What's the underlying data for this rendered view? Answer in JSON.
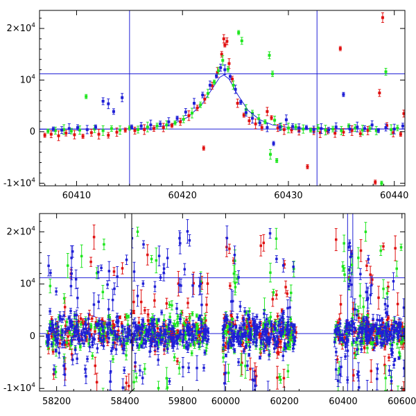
{
  "chart_data": [
    {
      "type": "scatter",
      "panel": "top",
      "title": "",
      "xlabel": "",
      "ylabel": "",
      "xlim": [
        60406.5,
        60441
      ],
      "ylim": [
        -10500,
        23500
      ],
      "x_ticks": [
        {
          "value": 60410,
          "label": "60410"
        },
        {
          "value": 60420,
          "label": "60420"
        },
        {
          "value": 60430,
          "label": "60430"
        },
        {
          "value": 60440,
          "label": "60440"
        }
      ],
      "y_ticks": [
        {
          "value": 20000,
          "base": "2×10",
          "exp": "4"
        },
        {
          "value": 10000,
          "base": "10",
          "exp": "4"
        },
        {
          "value": 0,
          "base": "0",
          "exp": ""
        },
        {
          "value": -10000,
          "base": "-1×10",
          "exp": "4"
        }
      ],
      "hlines": [
        11200,
        500
      ],
      "vlines": [
        60415,
        60432.7
      ],
      "model_curve": {
        "color": "#1f1fd6",
        "points": [
          [
            60406.5,
            450
          ],
          [
            60414,
            500
          ],
          [
            60417,
            700
          ],
          [
            60419,
            1400
          ],
          [
            60420.5,
            2800
          ],
          [
            60421.8,
            5200
          ],
          [
            60422.8,
            8300
          ],
          [
            60423.5,
            10500
          ],
          [
            60423.9,
            11000
          ],
          [
            60424.4,
            10200
          ],
          [
            60425.2,
            7200
          ],
          [
            60426.2,
            4100
          ],
          [
            60427.3,
            2300
          ],
          [
            60428.5,
            1300
          ],
          [
            60430,
            800
          ],
          [
            60432,
            600
          ],
          [
            60441,
            500
          ]
        ]
      },
      "series": [
        {
          "color": "#e01010",
          "points": [
            [
              60407.0,
              -700
            ],
            [
              60407.6,
              -500
            ],
            [
              60408.3,
              -800
            ],
            [
              60409.0,
              -300
            ],
            [
              60409.8,
              -600
            ],
            [
              60410.6,
              -900
            ],
            [
              60411.4,
              -200
            ],
            [
              60412.1,
              -500
            ],
            [
              60413.0,
              -700
            ],
            [
              60413.8,
              -100
            ],
            [
              60414.6,
              300
            ],
            [
              60415.5,
              200
            ],
            [
              60416.4,
              400
            ],
            [
              60417.3,
              600
            ],
            [
              60418.2,
              800
            ],
            [
              60419.0,
              1200
            ],
            [
              60419.8,
              1900
            ],
            [
              60420.6,
              3100
            ],
            [
              60421.4,
              4600
            ],
            [
              60422.1,
              6300
            ],
            [
              60422.0,
              -3200
            ],
            [
              60422.8,
              8900
            ],
            [
              60423.3,
              11500
            ],
            [
              60423.7,
              15000
            ],
            [
              60423.9,
              18000
            ],
            [
              60424.0,
              16800
            ],
            [
              60424.2,
              17500
            ],
            [
              60424.4,
              13200
            ],
            [
              60424.7,
              10200
            ],
            [
              60425.2,
              5500
            ],
            [
              60425.8,
              3200
            ],
            [
              60426.3,
              2100
            ],
            [
              60426.9,
              1500
            ],
            [
              60427.5,
              800
            ],
            [
              60428.0,
              3900
            ],
            [
              60428.4,
              2700
            ],
            [
              60429.0,
              700
            ],
            [
              60429.6,
              400
            ],
            [
              60430.3,
              300
            ],
            [
              60431.0,
              150
            ],
            [
              60431.8,
              -6800
            ],
            [
              60432.4,
              100
            ],
            [
              60433.0,
              -200
            ],
            [
              60433.7,
              100
            ],
            [
              60434.4,
              -300
            ],
            [
              60434.9,
              16100
            ],
            [
              60435.2,
              -100
            ],
            [
              60436.0,
              200
            ],
            [
              60436.8,
              -400
            ],
            [
              60437.5,
              200
            ],
            [
              60438.2,
              -9800
            ],
            [
              60438.6,
              7500
            ],
            [
              60438.9,
              22100
            ],
            [
              60439.3,
              1200
            ],
            [
              60439.9,
              -200
            ],
            [
              60440.6,
              -500
            ],
            [
              60440.9,
              3500
            ]
          ]
        },
        {
          "color": "#1ee61e",
          "points": [
            [
              60407.3,
              100
            ],
            [
              60408.0,
              200
            ],
            [
              60408.8,
              400
            ],
            [
              60409.5,
              100
            ],
            [
              60410.3,
              300
            ],
            [
              60410.9,
              6800
            ],
            [
              60411.7,
              500
            ],
            [
              60412.5,
              200
            ],
            [
              60413.3,
              600
            ],
            [
              60414.1,
              300
            ],
            [
              60415.0,
              700
            ],
            [
              60415.8,
              400
            ],
            [
              60416.7,
              900
            ],
            [
              60417.6,
              1100
            ],
            [
              60418.5,
              1300
            ],
            [
              60419.3,
              1700
            ],
            [
              60420.1,
              2400
            ],
            [
              60420.9,
              3600
            ],
            [
              60421.7,
              5200
            ],
            [
              60422.4,
              7400
            ],
            [
              60423.0,
              9600
            ],
            [
              60423.4,
              11800
            ],
            [
              60423.8,
              13800
            ],
            [
              60424.3,
              12100
            ],
            [
              60424.8,
              9000
            ],
            [
              60425.3,
              19200
            ],
            [
              60425.6,
              17600
            ],
            [
              60426.0,
              4300
            ],
            [
              60426.6,
              3600
            ],
            [
              60427.2,
              2500
            ],
            [
              60427.8,
              1900
            ],
            [
              60428.2,
              14800
            ],
            [
              60428.3,
              -4400
            ],
            [
              60428.5,
              11200
            ],
            [
              60428.7,
              2200
            ],
            [
              60428.9,
              -5600
            ],
            [
              60429.3,
              1000
            ],
            [
              60430.0,
              700
            ],
            [
              60430.7,
              900
            ],
            [
              60431.4,
              500
            ],
            [
              60432.1,
              300
            ],
            [
              60432.8,
              700
            ],
            [
              60433.5,
              300
            ],
            [
              60434.2,
              500
            ],
            [
              60435.0,
              200
            ],
            [
              60435.7,
              1100
            ],
            [
              60436.3,
              700
            ],
            [
              60437.0,
              300
            ],
            [
              60437.7,
              600
            ],
            [
              60438.3,
              200
            ],
            [
              60438.8,
              -10000
            ],
            [
              60439.2,
              11600
            ],
            [
              60439.7,
              400
            ],
            [
              60440.3,
              700
            ]
          ]
        },
        {
          "color": "#1f1fd6",
          "points": [
            [
              60407.8,
              500
            ],
            [
              60408.6,
              300
            ],
            [
              60409.3,
              600
            ],
            [
              60410.1,
              800
            ],
            [
              60411.0,
              400
            ],
            [
              60411.8,
              900
            ],
            [
              60412.5,
              5900
            ],
            [
              60413.0,
              5400
            ],
            [
              60413.5,
              3900
            ],
            [
              60414.3,
              6600
            ],
            [
              60415.2,
              900
            ],
            [
              60416.1,
              1100
            ],
            [
              60417.0,
              1300
            ],
            [
              60417.9,
              1500
            ],
            [
              60418.7,
              1900
            ],
            [
              60419.5,
              2600
            ],
            [
              60420.3,
              3800
            ],
            [
              60421.1,
              5500
            ],
            [
              60421.9,
              7100
            ],
            [
              60422.6,
              9000
            ],
            [
              60423.2,
              10800
            ],
            [
              60423.6,
              12400
            ],
            [
              60424.0,
              12000
            ],
            [
              60424.5,
              10700
            ],
            [
              60425.0,
              8200
            ],
            [
              60425.5,
              5700
            ],
            [
              60426.0,
              3700
            ],
            [
              60426.6,
              2600
            ],
            [
              60427.3,
              1700
            ],
            [
              60428.0,
              800
            ],
            [
              60428.6,
              -2300
            ],
            [
              60429.2,
              900
            ],
            [
              60429.8,
              2300
            ],
            [
              60430.4,
              1000
            ],
            [
              60431.0,
              700
            ],
            [
              60431.7,
              800
            ],
            [
              60432.4,
              400
            ],
            [
              60433.1,
              600
            ],
            [
              60433.8,
              300
            ],
            [
              60434.5,
              900
            ],
            [
              60435.2,
              7200
            ],
            [
              60435.8,
              500
            ],
            [
              60436.5,
              900
            ],
            [
              60437.2,
              600
            ],
            [
              60437.9,
              1300
            ],
            [
              60438.5,
              200
            ],
            [
              60439.2,
              800
            ],
            [
              60440.0,
              500
            ],
            [
              60440.8,
              1100
            ]
          ]
        }
      ]
    },
    {
      "type": "scatter",
      "panel": "bottom",
      "title": "",
      "xlabel": "",
      "ylabel": "",
      "ylim": [
        -10500,
        23500
      ],
      "breaks": [
        {
          "xlim": [
            58150,
            58420
          ]
        },
        {
          "xlim": [
            59640,
            59950
          ]
        },
        {
          "xlim": [
            59900,
            60610
          ]
        }
      ],
      "x_ticks": [
        {
          "value": 58200,
          "label": "58200"
        },
        {
          "value": 58400,
          "label": "58400"
        },
        {
          "value": 59800,
          "label": "59800"
        },
        {
          "value": 60000,
          "label": "60000"
        },
        {
          "value": 60200,
          "label": "60200"
        },
        {
          "value": 60400,
          "label": "60400"
        },
        {
          "value": 60600,
          "label": "60600"
        }
      ],
      "y_ticks": [
        {
          "value": 20000,
          "base": "2×10",
          "exp": "4"
        },
        {
          "value": 10000,
          "base": "10",
          "exp": "4"
        },
        {
          "value": 0,
          "base": "0",
          "exp": ""
        },
        {
          "value": -10000,
          "base": "-1×10",
          "exp": "4"
        }
      ],
      "hlines": [
        11200,
        500
      ],
      "vlines": [
        60415,
        60432.7
      ],
      "seasons": [
        {
          "xlim": [
            58170,
            58420
          ],
          "count": 130
        },
        {
          "xlim": [
            59640,
            59890
          ],
          "count": 140
        },
        {
          "xlim": [
            59990,
            60240
          ],
          "count": 150
        },
        {
          "xlim": [
            60370,
            60610
          ],
          "count": 150
        }
      ],
      "series": [
        {
          "color": "#e01010"
        },
        {
          "color": "#1ee61e"
        },
        {
          "color": "#1f1fd6"
        }
      ]
    }
  ]
}
